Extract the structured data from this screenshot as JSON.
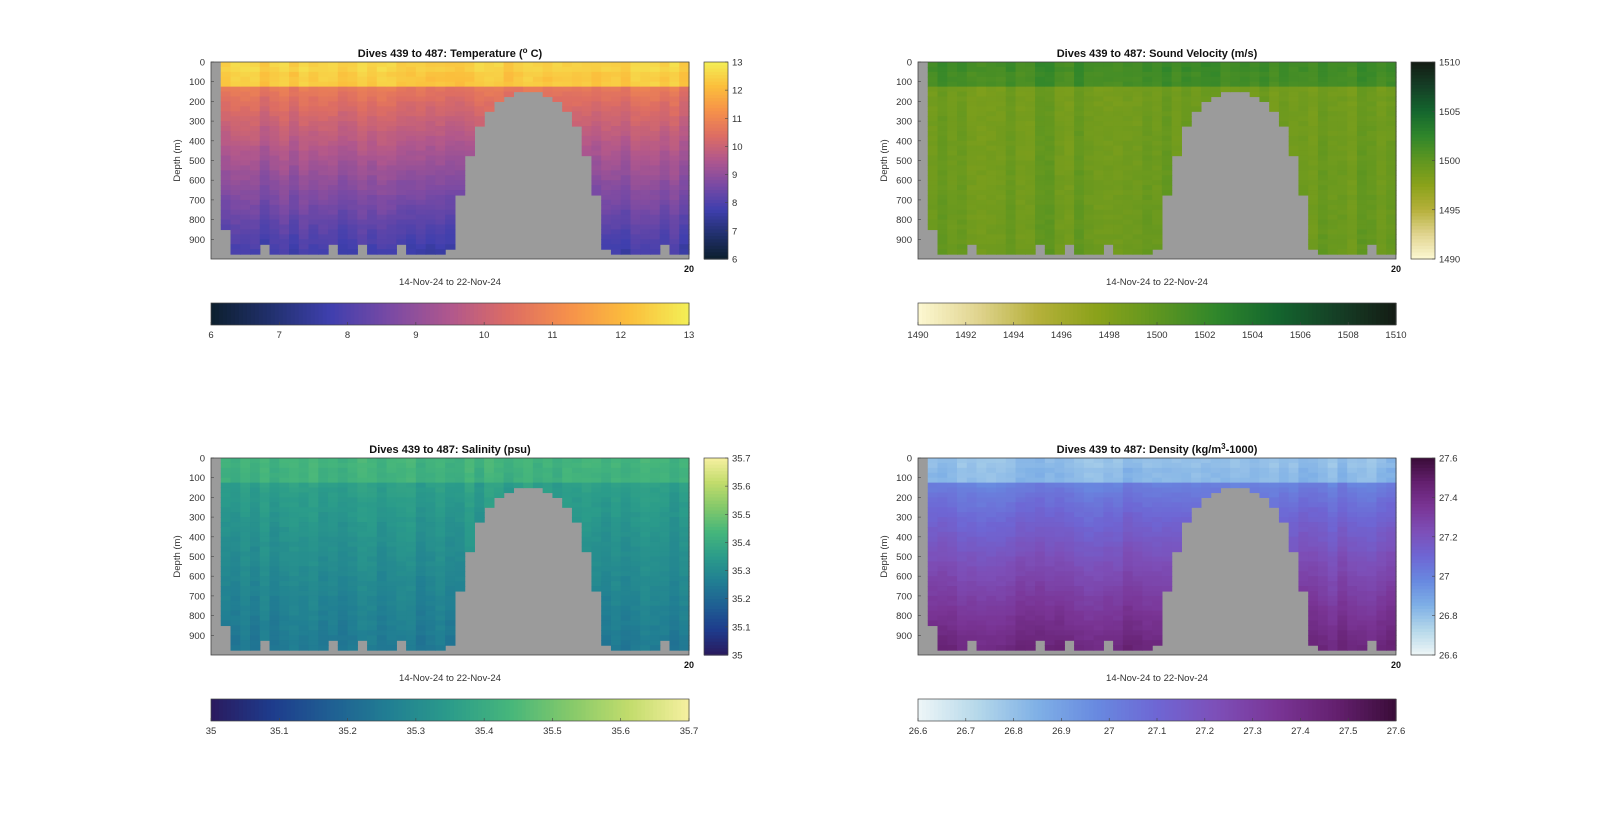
{
  "figure": {
    "x_range_label": "14-Nov-24 to 22-Nov-24",
    "corner_tick": "20",
    "missing_color": "#9b9b9b",
    "depth_ticks": [
      "0",
      "100",
      "200",
      "300",
      "400",
      "500",
      "600",
      "700",
      "800",
      "900"
    ]
  },
  "chart_data": [
    {
      "id": "temperature",
      "type": "heatmap",
      "title": "Dives 439 to 487: Temperature (",
      "title_superscript": "o",
      "title_tail": " C)",
      "ylabel": "Depth (m)",
      "xlabel": "14-Nov-24 to 22-Nov-24",
      "ylim": [
        0,
        1000
      ],
      "vertical_colorbar_ticks": [
        "13",
        "12",
        "11",
        "10",
        "9",
        "8",
        "7",
        "6"
      ],
      "horizontal_colorbar_ticks": [
        "6",
        "7",
        "8",
        "9",
        "10",
        "11",
        "12",
        "13"
      ],
      "colormap": [
        "#0c1f2e",
        "#21306d",
        "#3f3fae",
        "#7a4aa4",
        "#b0578d",
        "#dd6d63",
        "#f6914a",
        "#fbbe3c",
        "#f3ef56"
      ],
      "clim": [
        6,
        13
      ],
      "surface_value": 12.3,
      "thermocline_value": 10.7,
      "deep_value": 7.6,
      "seamount": true
    },
    {
      "id": "sound-velocity",
      "type": "heatmap",
      "title": "Dives 439 to 487: Sound Velocity (m/s)",
      "title_superscript": "",
      "title_tail": "",
      "ylabel": "Depth (m)",
      "xlabel": "14-Nov-24 to 22-Nov-24",
      "ylim": [
        0,
        1000
      ],
      "vertical_colorbar_ticks": [
        "1510",
        "1505",
        "1500",
        "1495",
        "1490"
      ],
      "horizontal_colorbar_ticks": [
        "1490",
        "1492",
        "1494",
        "1496",
        "1498",
        "1500",
        "1502",
        "1504",
        "1506",
        "1508",
        "1510"
      ],
      "colormap": [
        "#fdf8d2",
        "#e0d48f",
        "#b5b03a",
        "#8aa21a",
        "#5f9620",
        "#2f862b",
        "#14662e",
        "#153f26",
        "#141c14"
      ],
      "clim": [
        1490,
        1510
      ],
      "surface_value": 1501.5,
      "thermocline_value": 1499.0,
      "deep_value": 1499.5,
      "seamount": true
    },
    {
      "id": "salinity",
      "type": "heatmap",
      "title": "Dives 439 to 487: Salinity (psu)",
      "title_superscript": "",
      "title_tail": "",
      "ylabel": "Depth (m)",
      "xlabel": "14-Nov-24 to 22-Nov-24",
      "ylim": [
        0,
        1000
      ],
      "vertical_colorbar_ticks": [
        "35.7",
        "35.6",
        "35.5",
        "35.4",
        "35.3",
        "35.2",
        "35.1",
        "35"
      ],
      "horizontal_colorbar_ticks": [
        "35",
        "35.1",
        "35.2",
        "35.3",
        "35.4",
        "35.5",
        "35.6",
        "35.7"
      ],
      "colormap": [
        "#2a1a5e",
        "#1e3b8c",
        "#1f5f93",
        "#217f93",
        "#2b9c8a",
        "#46b67b",
        "#84c96a",
        "#c2dc6c",
        "#f6f0a0"
      ],
      "clim": [
        35,
        35.7
      ],
      "surface_value": 35.42,
      "thermocline_value": 35.36,
      "deep_value": 35.24,
      "seamount": true
    },
    {
      "id": "density",
      "type": "heatmap",
      "title": "Dives 439 to 487: Density (kg/m",
      "title_superscript": "3",
      "title_tail": "-1000)",
      "ylabel": "Depth (m)",
      "xlabel": "14-Nov-24 to 22-Nov-24",
      "ylim": [
        0,
        1000
      ],
      "vertical_colorbar_ticks": [
        "27.6",
        "27.4",
        "27.2",
        "27",
        "26.8",
        "26.6"
      ],
      "horizontal_colorbar_ticks": [
        "26.6",
        "26.7",
        "26.8",
        "26.9",
        "27",
        "27.1",
        "27.2",
        "27.3",
        "27.4",
        "27.5",
        "27.6"
      ],
      "colormap": [
        "#eef6f7",
        "#b5d8ea",
        "#7fb0e6",
        "#6889e0",
        "#6e66d4",
        "#7d4fb8",
        "#7a3596",
        "#64206f",
        "#3a0c38"
      ],
      "clim": [
        26.6,
        27.6
      ],
      "surface_value": 26.82,
      "thermocline_value": 27.0,
      "deep_value": 27.45,
      "seamount": true
    }
  ]
}
